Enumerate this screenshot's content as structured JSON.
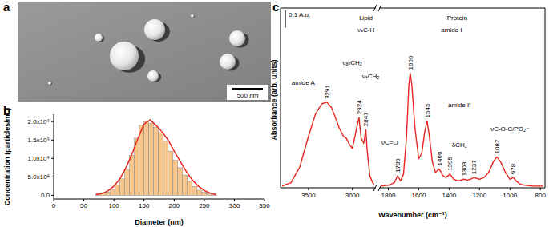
{
  "image": {
    "title": "a",
    "scale_bar": "500 nm"
  },
  "chart_data": [
    {
      "type": "histogram",
      "title": "b",
      "x_label": "Diameter (nm)",
      "y_label": "Concentration (particles/mL)",
      "bins": [
        70,
        78,
        86,
        94,
        102,
        110,
        118,
        126,
        134,
        142,
        150,
        158,
        166,
        174,
        182,
        190,
        198,
        206,
        214,
        222,
        230,
        238,
        246,
        254,
        262,
        270
      ],
      "values": [
        30000000,
        70000000,
        90000000,
        150000000,
        280000000,
        450000000,
        700000000,
        1080000000,
        1550000000,
        1900000000,
        2000000000,
        1950000000,
        1850000000,
        1700000000,
        1480000000,
        1200000000,
        950000000,
        750000000,
        550000000,
        380000000,
        240000000,
        140000000,
        80000000,
        40000000,
        20000000
      ],
      "color": "#f8c68a",
      "fit": {
        "type": "line",
        "color": "#e8251f",
        "x": [
          70,
          80,
          90,
          100,
          110,
          120,
          130,
          140,
          150,
          160,
          170,
          180,
          190,
          200,
          210,
          220,
          230,
          240,
          250,
          260,
          270
        ],
        "values": [
          20000000,
          50000000,
          120000000,
          250000000,
          450000000,
          750000000,
          1120000000,
          1550000000,
          1930000000,
          2050000000,
          1900000000,
          1720000000,
          1500000000,
          1200000000,
          920000000,
          650000000,
          420000000,
          250000000,
          130000000,
          60000000,
          20000000
        ]
      },
      "xlim": [
        0,
        350
      ],
      "xticks": [
        0,
        50,
        100,
        150,
        200,
        250,
        300,
        350
      ],
      "ylim": [
        -100000000,
        2200000000
      ],
      "yticks": [
        {
          "value": 0,
          "label": "0.0"
        },
        {
          "value": 500000000,
          "label": "5.0x10⁸"
        },
        {
          "value": 1000000000,
          "label": "1.0x10⁹"
        },
        {
          "value": 1500000000,
          "label": "1.5x10⁹"
        },
        {
          "value": 2000000000,
          "label": "2.0x10⁹"
        }
      ],
      "grid": false
    },
    {
      "type": "line",
      "title": "c",
      "x_label": "Wavenumber (cm⁻¹)",
      "y_label": "Absorbance (arb. units)",
      "color": "#e8251f",
      "tick_labels": "x",
      "grid": false,
      "ylim": [
        0,
        1.05
      ],
      "scale_bar": {
        "value": 0.1,
        "label": "0.1 A.u."
      },
      "segments": [
        {
          "xlim": [
            3800,
            2750
          ],
          "xticks": [
            3500,
            3000
          ],
          "x": [
            3800,
            3700,
            3600,
            3500,
            3420,
            3350,
            3291,
            3240,
            3200,
            3150,
            3100,
            3070,
            3030,
            3000,
            2970,
            2955,
            2924,
            2900,
            2870,
            2847,
            2830,
            2800,
            2770,
            2750
          ],
          "values": [
            0.01,
            0.03,
            0.12,
            0.3,
            0.43,
            0.49,
            0.5,
            0.47,
            0.42,
            0.35,
            0.3,
            0.29,
            0.25,
            0.23,
            0.3,
            0.34,
            0.41,
            0.29,
            0.26,
            0.34,
            0.21,
            0.07,
            0.03,
            0.02
          ]
        },
        {
          "xlim": [
            1850,
            780
          ],
          "xticks": [
            1800,
            1600,
            1400,
            1200,
            1000,
            800
          ],
          "x": [
            1850,
            1800,
            1760,
            1739,
            1720,
            1700,
            1680,
            1665,
            1656,
            1645,
            1625,
            1600,
            1580,
            1560,
            1545,
            1530,
            1510,
            1490,
            1466,
            1440,
            1420,
            1395,
            1370,
            1340,
            1303,
            1280,
            1260,
            1237,
            1200,
            1170,
            1140,
            1110,
            1087,
            1060,
            1030,
            1000,
            978,
            960,
            930,
            900,
            850,
            800,
            780
          ],
          "values": [
            0.01,
            0.015,
            0.03,
            0.07,
            0.04,
            0.08,
            0.3,
            0.6,
            0.67,
            0.6,
            0.35,
            0.17,
            0.2,
            0.33,
            0.39,
            0.3,
            0.15,
            0.09,
            0.11,
            0.07,
            0.06,
            0.08,
            0.05,
            0.04,
            0.05,
            0.045,
            0.05,
            0.06,
            0.05,
            0.06,
            0.09,
            0.15,
            0.18,
            0.15,
            0.09,
            0.05,
            0.06,
            0.04,
            0.02,
            0.015,
            0.01,
            0.01,
            0.01
          ]
        }
      ],
      "peaks": [
        3291,
        2924,
        2847,
        1739,
        1656,
        1545,
        1466,
        1395,
        1303,
        1237,
        1087,
        978
      ],
      "annotations": [
        {
          "text": "amide A",
          "x": 3560,
          "y": 0.6
        },
        {
          "text": "Lipid",
          "x": 2845,
          "y": 0.98
        },
        {
          "text": "νₛC-H",
          "x": 2845,
          "y": 0.91
        },
        {
          "text": "νₐₛCH₂",
          "x": 3000,
          "y": 0.72
        },
        {
          "text": "νₛCH₂",
          "x": 2790,
          "y": 0.64
        },
        {
          "text": "Protein",
          "x": 1347,
          "y": 0.98
        },
        {
          "text": "amide I",
          "x": 1384,
          "y": 0.91
        },
        {
          "text": "amide II",
          "x": 1332,
          "y": 0.47
        },
        {
          "text": "νC=O",
          "x": 1790,
          "y": 0.25
        },
        {
          "text": "δCH₂",
          "x": 1332,
          "y": 0.24
        },
        {
          "text": "νC-O-C/PO₂⁻",
          "x": 1000,
          "y": 0.33
        }
      ]
    }
  ]
}
